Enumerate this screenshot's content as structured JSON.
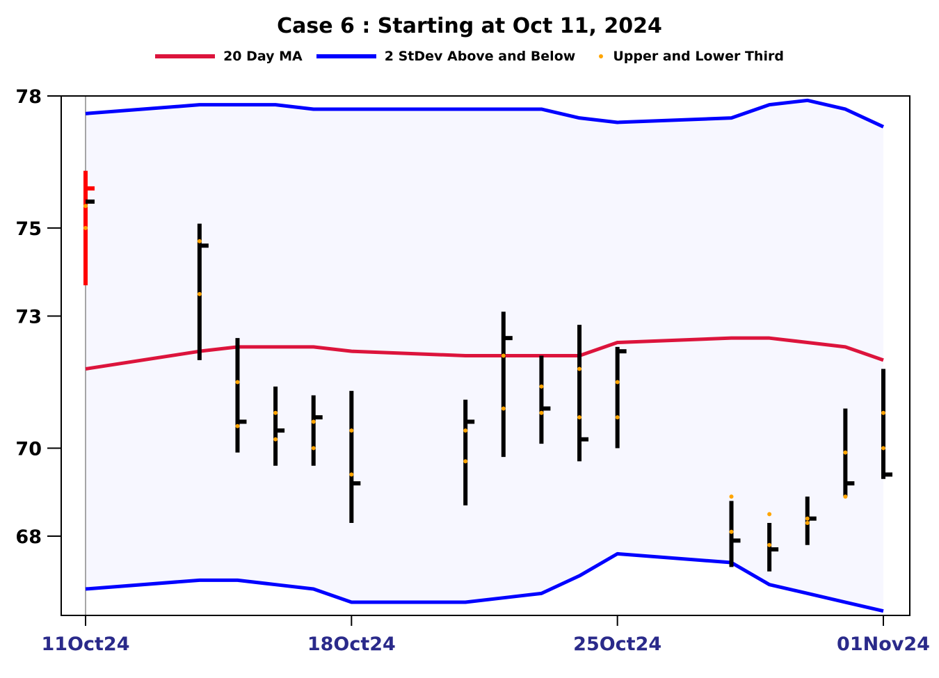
{
  "chart_data": {
    "type": "ohlc",
    "title": "Case 6 :  Starting at Oct 11, 2024",
    "legend": {
      "placement": "top-center",
      "entries": [
        {
          "label": "20 Day MA",
          "color": "#dc143c",
          "kind": "line"
        },
        {
          "label": "2 StDev Above and Below",
          "color": "#0000ff",
          "kind": "line"
        },
        {
          "label": "Upper  and Lower Third",
          "color": "#ffa500",
          "kind": "dot"
        }
      ]
    },
    "ylim": [
      66.2,
      78
    ],
    "y_ticks": [
      68,
      70,
      73,
      75,
      78
    ],
    "x_ticks": [
      {
        "date": "2024-10-11",
        "label": "11Oct24"
      },
      {
        "date": "2024-10-18",
        "label": "18Oct24"
      },
      {
        "date": "2024-10-25",
        "label": "25Oct24"
      },
      {
        "date": "2024-11-01",
        "label": "01Nov24"
      }
    ],
    "x_range": [
      "2024-10-10",
      "2024-11-01"
    ],
    "background_band": "#f7f7ff",
    "highlight_first_bar_color": "#ff0000",
    "bars": [
      {
        "date": "2024-10-11",
        "open": 75.9,
        "high": 76.3,
        "low": 73.7,
        "close": 75.6,
        "upper_third": 75.5,
        "lower_third": 75.0
      },
      {
        "date": "2024-10-14",
        "open": 74.6,
        "high": 75.1,
        "low": 72.0,
        "close": 74.6,
        "upper_third": 74.7,
        "lower_third": 73.5
      },
      {
        "date": "2024-10-15",
        "open": 72.3,
        "high": 72.5,
        "low": 69.9,
        "close": 70.6,
        "upper_third": 71.5,
        "lower_third": 70.5
      },
      {
        "date": "2024-10-16",
        "open": 70.4,
        "high": 71.4,
        "low": 69.6,
        "close": 70.4,
        "upper_third": 70.8,
        "lower_third": 70.2
      },
      {
        "date": "2024-10-17",
        "open": 70.6,
        "high": 71.2,
        "low": 69.6,
        "close": 70.7,
        "upper_third": 70.6,
        "lower_third": 70.0
      },
      {
        "date": "2024-10-18",
        "open": 70.3,
        "high": 71.3,
        "low": 68.3,
        "close": 69.2,
        "upper_third": 70.4,
        "lower_third": 69.4
      },
      {
        "date": "2024-10-21",
        "open": 70.5,
        "high": 71.1,
        "low": 68.7,
        "close": 70.6,
        "upper_third": 70.4,
        "lower_third": 69.7
      },
      {
        "date": "2024-10-22",
        "open": 72.3,
        "high": 73.1,
        "low": 69.8,
        "close": 72.5,
        "upper_third": 72.1,
        "lower_third": 70.9
      },
      {
        "date": "2024-10-23",
        "open": 71.0,
        "high": 72.1,
        "low": 70.1,
        "close": 70.9,
        "upper_third": 71.4,
        "lower_third": 70.8
      },
      {
        "date": "2024-10-24",
        "open": 71.9,
        "high": 72.8,
        "low": 69.7,
        "close": 70.2,
        "upper_third": 71.8,
        "lower_third": 70.7
      },
      {
        "date": "2024-10-25",
        "open": 72.3,
        "high": 72.3,
        "low": 70.0,
        "close": 72.2,
        "upper_third": 71.5,
        "lower_third": 70.7
      },
      {
        "date": "2024-10-28",
        "open": 68.5,
        "high": 68.8,
        "low": 67.3,
        "close": 67.9,
        "upper_third": 68.9,
        "lower_third": 68.1
      },
      {
        "date": "2024-10-29",
        "open": 68.3,
        "high": 68.3,
        "low": 67.2,
        "close": 67.7,
        "upper_third": 68.5,
        "lower_third": 67.8
      },
      {
        "date": "2024-10-30",
        "open": 68.6,
        "high": 68.9,
        "low": 67.8,
        "close": 68.4,
        "upper_third": 68.3,
        "lower_third": 68.4
      },
      {
        "date": "2024-10-31",
        "open": 69.1,
        "high": 70.9,
        "low": 68.9,
        "close": 69.2,
        "upper_third": 69.9,
        "lower_third": 68.9
      },
      {
        "date": "2024-11-01",
        "open": 70.2,
        "high": 71.8,
        "low": 69.3,
        "close": 69.4,
        "upper_third": 70.8,
        "lower_third": 70.0
      }
    ],
    "ma20": [
      71.8,
      72.2,
      72.3,
      72.3,
      72.3,
      72.2,
      72.1,
      72.1,
      72.1,
      72.1,
      72.4,
      72.5,
      72.5,
      72.4,
      72.3,
      72.0
    ],
    "upper_band": [
      77.6,
      77.8,
      77.8,
      77.8,
      77.7,
      77.7,
      77.7,
      77.7,
      77.7,
      77.5,
      77.4,
      77.5,
      77.8,
      77.9,
      77.7,
      77.3
    ],
    "lower_band": [
      66.8,
      67.0,
      67.0,
      66.9,
      66.8,
      66.5,
      66.5,
      66.6,
      66.7,
      67.1,
      67.6,
      67.4,
      66.9,
      66.7,
      66.5,
      66.3
    ]
  }
}
